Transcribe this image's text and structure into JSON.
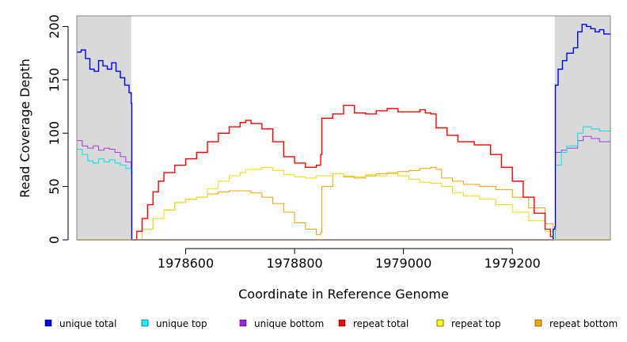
{
  "chart_data": {
    "type": "line",
    "xlabel": "Coordinate in Reference Genome",
    "ylabel": "Read Coverage Depth",
    "xlim": [
      1978400,
      1979380
    ],
    "ylim": [
      0,
      210
    ],
    "x_ticks": [
      1978600,
      1978800,
      1979000,
      1979200
    ],
    "y_ticks": [
      0,
      50,
      100,
      150,
      200
    ],
    "shaded_regions": [
      [
        1978400,
        1978500
      ],
      [
        1979278,
        1979380
      ]
    ],
    "shade_color": "#d9d9d9",
    "series": [
      {
        "name": "unique total",
        "color": "#0000ff",
        "points": [
          [
            1978400,
            176
          ],
          [
            1978408,
            178
          ],
          [
            1978416,
            170
          ],
          [
            1978424,
            160
          ],
          [
            1978432,
            158
          ],
          [
            1978440,
            168
          ],
          [
            1978448,
            163
          ],
          [
            1978456,
            160
          ],
          [
            1978464,
            166
          ],
          [
            1978472,
            158
          ],
          [
            1978480,
            152
          ],
          [
            1978488,
            145
          ],
          [
            1978496,
            138
          ],
          [
            1978500,
            128
          ],
          [
            1978501,
            0
          ],
          [
            1979274,
            0
          ],
          [
            1979275,
            10
          ],
          [
            1979278,
            12
          ],
          [
            1979279,
            145
          ],
          [
            1979284,
            160
          ],
          [
            1979292,
            168
          ],
          [
            1979300,
            175
          ],
          [
            1979312,
            180
          ],
          [
            1979320,
            195
          ],
          [
            1979328,
            202
          ],
          [
            1979336,
            200
          ],
          [
            1979344,
            198
          ],
          [
            1979352,
            195
          ],
          [
            1979360,
            197
          ],
          [
            1979368,
            193
          ],
          [
            1979380,
            192
          ]
        ]
      },
      {
        "name": "unique top",
        "color": "#00e5e5",
        "points": [
          [
            1978400,
            85
          ],
          [
            1978410,
            80
          ],
          [
            1978420,
            74
          ],
          [
            1978430,
            72
          ],
          [
            1978440,
            76
          ],
          [
            1978450,
            73
          ],
          [
            1978460,
            75
          ],
          [
            1978470,
            72
          ],
          [
            1978480,
            70
          ],
          [
            1978490,
            67
          ],
          [
            1978500,
            63
          ],
          [
            1978501,
            0
          ],
          [
            1979278,
            0
          ],
          [
            1979279,
            70
          ],
          [
            1979290,
            82
          ],
          [
            1979300,
            88
          ],
          [
            1979320,
            100
          ],
          [
            1979330,
            106
          ],
          [
            1979345,
            104
          ],
          [
            1979360,
            102
          ],
          [
            1979380,
            101
          ]
        ]
      },
      {
        "name": "unique bottom",
        "color": "#a040e0",
        "points": [
          [
            1978400,
            93
          ],
          [
            1978410,
            88
          ],
          [
            1978420,
            86
          ],
          [
            1978430,
            88
          ],
          [
            1978440,
            84
          ],
          [
            1978450,
            86
          ],
          [
            1978460,
            85
          ],
          [
            1978470,
            82
          ],
          [
            1978480,
            78
          ],
          [
            1978490,
            73
          ],
          [
            1978500,
            68
          ],
          [
            1978501,
            0
          ],
          [
            1979278,
            0
          ],
          [
            1979279,
            82
          ],
          [
            1979290,
            84
          ],
          [
            1979300,
            86
          ],
          [
            1979320,
            93
          ],
          [
            1979330,
            97
          ],
          [
            1979345,
            95
          ],
          [
            1979360,
            92
          ],
          [
            1979380,
            90
          ]
        ]
      },
      {
        "name": "repeat total",
        "color": "#ff0000",
        "points": [
          [
            1978500,
            0
          ],
          [
            1978510,
            8
          ],
          [
            1978520,
            20
          ],
          [
            1978530,
            33
          ],
          [
            1978540,
            45
          ],
          [
            1978550,
            55
          ],
          [
            1978560,
            63
          ],
          [
            1978580,
            70
          ],
          [
            1978600,
            76
          ],
          [
            1978620,
            82
          ],
          [
            1978640,
            92
          ],
          [
            1978660,
            100
          ],
          [
            1978680,
            106
          ],
          [
            1978700,
            110
          ],
          [
            1978710,
            112
          ],
          [
            1978720,
            109
          ],
          [
            1978740,
            104
          ],
          [
            1978760,
            92
          ],
          [
            1978780,
            78
          ],
          [
            1978800,
            72
          ],
          [
            1978820,
            68
          ],
          [
            1978840,
            70
          ],
          [
            1978848,
            80
          ],
          [
            1978850,
            114
          ],
          [
            1978870,
            118
          ],
          [
            1978890,
            126
          ],
          [
            1978910,
            119
          ],
          [
            1978930,
            118
          ],
          [
            1978950,
            121
          ],
          [
            1978970,
            123
          ],
          [
            1978990,
            120
          ],
          [
            1979010,
            120
          ],
          [
            1979030,
            122
          ],
          [
            1979040,
            119
          ],
          [
            1979050,
            118
          ],
          [
            1979060,
            105
          ],
          [
            1979080,
            98
          ],
          [
            1979100,
            92
          ],
          [
            1979130,
            89
          ],
          [
            1979160,
            80
          ],
          [
            1979180,
            68
          ],
          [
            1979200,
            55
          ],
          [
            1979220,
            40
          ],
          [
            1979240,
            25
          ],
          [
            1979260,
            10
          ],
          [
            1979270,
            3
          ],
          [
            1979275,
            0
          ]
        ]
      },
      {
        "name": "repeat top",
        "color": "#e8e000",
        "points": [
          [
            1978500,
            0
          ],
          [
            1978520,
            10
          ],
          [
            1978540,
            20
          ],
          [
            1978560,
            28
          ],
          [
            1978580,
            35
          ],
          [
            1978600,
            38
          ],
          [
            1978620,
            40
          ],
          [
            1978640,
            48
          ],
          [
            1978660,
            55
          ],
          [
            1978680,
            60
          ],
          [
            1978700,
            63
          ],
          [
            1978710,
            66
          ],
          [
            1978740,
            68
          ],
          [
            1978760,
            65
          ],
          [
            1978780,
            61
          ],
          [
            1978800,
            59
          ],
          [
            1978820,
            58
          ],
          [
            1978840,
            60
          ],
          [
            1978850,
            60
          ],
          [
            1978870,
            62
          ],
          [
            1978890,
            60
          ],
          [
            1978910,
            59
          ],
          [
            1978930,
            61
          ],
          [
            1978950,
            60
          ],
          [
            1978970,
            62
          ],
          [
            1978990,
            60
          ],
          [
            1979010,
            57
          ],
          [
            1979030,
            54
          ],
          [
            1979050,
            53
          ],
          [
            1979070,
            50
          ],
          [
            1979090,
            44
          ],
          [
            1979110,
            41
          ],
          [
            1979140,
            38
          ],
          [
            1979170,
            33
          ],
          [
            1979200,
            26
          ],
          [
            1979230,
            18
          ],
          [
            1979260,
            8
          ],
          [
            1979275,
            0
          ]
        ]
      },
      {
        "name": "repeat bottom",
        "color": "#f0a000",
        "points": [
          [
            1978500,
            0
          ],
          [
            1978520,
            10
          ],
          [
            1978540,
            20
          ],
          [
            1978560,
            28
          ],
          [
            1978580,
            35
          ],
          [
            1978600,
            38
          ],
          [
            1978620,
            40
          ],
          [
            1978640,
            43
          ],
          [
            1978660,
            45
          ],
          [
            1978680,
            46
          ],
          [
            1978700,
            46
          ],
          [
            1978720,
            44
          ],
          [
            1978740,
            40
          ],
          [
            1978760,
            34
          ],
          [
            1978780,
            26
          ],
          [
            1978800,
            16
          ],
          [
            1978820,
            10
          ],
          [
            1978840,
            5
          ],
          [
            1978848,
            7
          ],
          [
            1978850,
            50
          ],
          [
            1978870,
            62
          ],
          [
            1978890,
            59
          ],
          [
            1978910,
            58
          ],
          [
            1978930,
            60
          ],
          [
            1978950,
            62
          ],
          [
            1978970,
            63
          ],
          [
            1978990,
            64
          ],
          [
            1979010,
            65
          ],
          [
            1979030,
            67
          ],
          [
            1979050,
            68
          ],
          [
            1979060,
            66
          ],
          [
            1979070,
            58
          ],
          [
            1979090,
            55
          ],
          [
            1979110,
            52
          ],
          [
            1979140,
            50
          ],
          [
            1979170,
            47
          ],
          [
            1979200,
            40
          ],
          [
            1979230,
            30
          ],
          [
            1979260,
            15
          ],
          [
            1979275,
            0
          ]
        ]
      }
    ]
  },
  "legend": [
    {
      "label": "unique total",
      "color": "#0000ff"
    },
    {
      "label": "unique top",
      "color": "#00ffff"
    },
    {
      "label": "unique bottom",
      "color": "#a020f0"
    },
    {
      "label": "repeat total",
      "color": "#ff0000"
    },
    {
      "label": "repeat top",
      "color": "#ffff00"
    },
    {
      "label": "repeat bottom",
      "color": "#ffa500"
    }
  ]
}
